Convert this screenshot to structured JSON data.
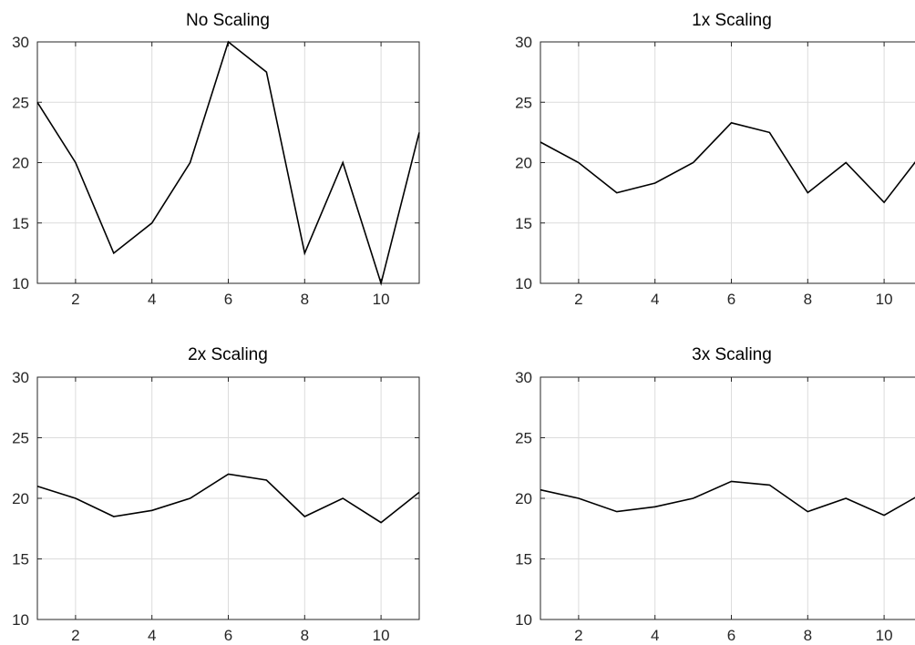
{
  "chart_data": [
    {
      "type": "line",
      "title": "No Scaling",
      "xlabel": "",
      "ylabel": "",
      "xlim": [
        1,
        11
      ],
      "ylim": [
        10,
        30
      ],
      "xticks": [
        2,
        4,
        6,
        8,
        10
      ],
      "yticks": [
        10,
        15,
        20,
        25,
        30
      ],
      "grid": true,
      "series": [
        {
          "x": [
            1,
            2,
            3,
            4,
            5,
            6,
            7,
            8,
            9,
            10,
            11
          ],
          "values": [
            25,
            20,
            12.5,
            15,
            20,
            30,
            27.5,
            12.5,
            20,
            10,
            22.5
          ],
          "color": "#000000"
        }
      ]
    },
    {
      "type": "line",
      "title": "1x Scaling",
      "xlabel": "",
      "ylabel": "",
      "xlim": [
        1,
        11
      ],
      "ylim": [
        10,
        30
      ],
      "xticks": [
        2,
        4,
        6,
        8,
        10
      ],
      "yticks": [
        10,
        15,
        20,
        25,
        30
      ],
      "grid": true,
      "series": [
        {
          "x": [
            1,
            2,
            3,
            4,
            5,
            6,
            7,
            8,
            9,
            10,
            11
          ],
          "values": [
            21.7,
            20,
            17.5,
            18.3,
            20,
            23.3,
            22.5,
            17.5,
            20,
            16.7,
            20.8
          ],
          "color": "#000000"
        }
      ]
    },
    {
      "type": "line",
      "title": "2x Scaling",
      "xlabel": "",
      "ylabel": "",
      "xlim": [
        1,
        11
      ],
      "ylim": [
        10,
        30
      ],
      "xticks": [
        2,
        4,
        6,
        8,
        10
      ],
      "yticks": [
        10,
        15,
        20,
        25,
        30
      ],
      "grid": true,
      "series": [
        {
          "x": [
            1,
            2,
            3,
            4,
            5,
            6,
            7,
            8,
            9,
            10,
            11
          ],
          "values": [
            21,
            20,
            18.5,
            19,
            20,
            22,
            21.5,
            18.5,
            20,
            18,
            20.5
          ],
          "color": "#000000"
        }
      ]
    },
    {
      "type": "line",
      "title": "3x Scaling",
      "xlabel": "",
      "ylabel": "",
      "xlim": [
        1,
        11
      ],
      "ylim": [
        10,
        30
      ],
      "xticks": [
        2,
        4,
        6,
        8,
        10
      ],
      "yticks": [
        10,
        15,
        20,
        25,
        30
      ],
      "grid": true,
      "series": [
        {
          "x": [
            1,
            2,
            3,
            4,
            5,
            6,
            7,
            8,
            9,
            10,
            11
          ],
          "values": [
            20.7,
            20,
            18.9,
            19.3,
            20,
            21.4,
            21.1,
            18.9,
            20,
            18.6,
            20.4
          ],
          "color": "#000000"
        }
      ]
    }
  ]
}
